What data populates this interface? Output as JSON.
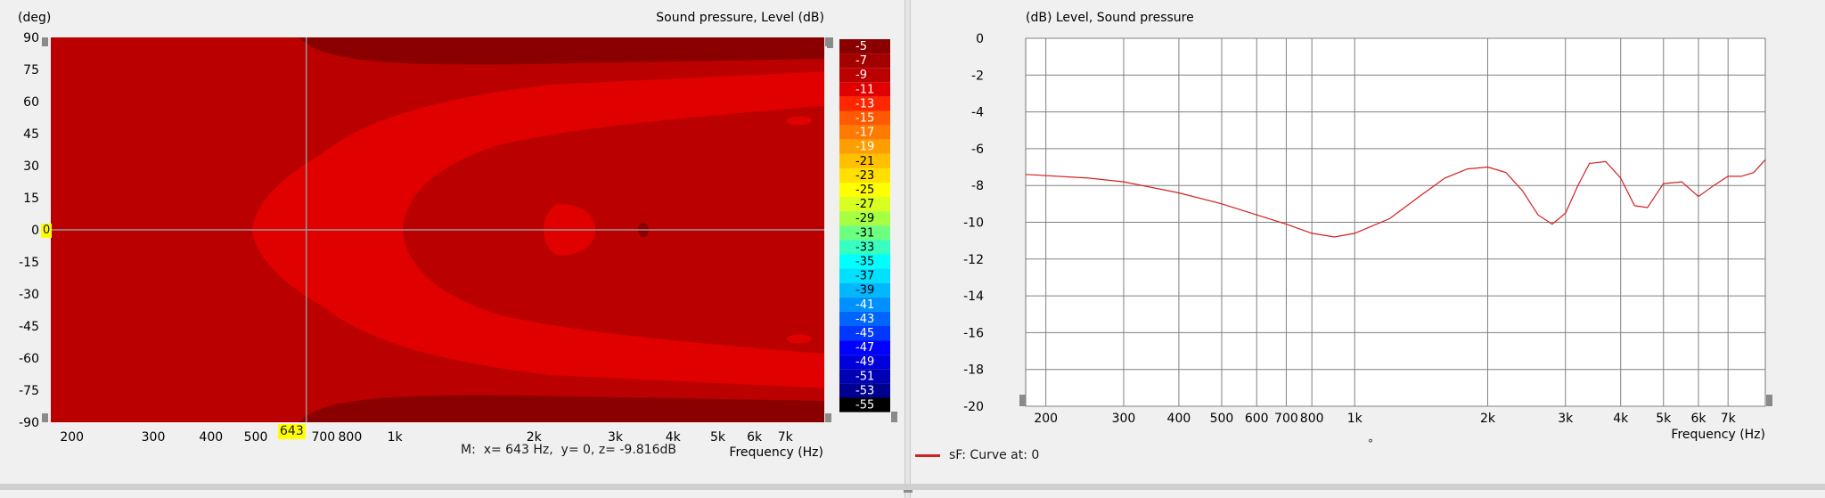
{
  "chart_data": [
    {
      "type": "heatmap",
      "title": "Sound pressure, Level  (dB)",
      "ylabel": "(deg)",
      "xlabel": "Frequency  (Hz)",
      "x_scale": "log",
      "xlim": [
        180,
        8500
      ],
      "ylim": [
        -90,
        90
      ],
      "x_ticks": [
        200,
        300,
        400,
        500,
        600,
        700,
        800,
        1000,
        2000,
        3000,
        4000,
        5000,
        6000,
        7000
      ],
      "x_tick_labels": [
        "200",
        "300",
        "400",
        "500",
        "",
        "700",
        "800",
        "1k",
        "2k",
        "3k",
        "4k",
        "5k",
        "6k",
        "7k"
      ],
      "y_ticks": [
        90,
        75,
        60,
        45,
        30,
        15,
        0,
        -15,
        -30,
        -45,
        -60,
        -75,
        -90
      ],
      "colorbar": {
        "levels": [
          "-5",
          "-7",
          "-9",
          "-11",
          "-13",
          "-15",
          "-17",
          "-19",
          "-21",
          "-23",
          "-25",
          "-27",
          "-29",
          "-31",
          "-33",
          "-35",
          "-37",
          "-39",
          "-41",
          "-43",
          "-45",
          "-47",
          "-49",
          "-51",
          "-53",
          "-55"
        ],
        "colors": [
          "#8a0000",
          "#a30000",
          "#bb0000",
          "#e00000",
          "#ff2600",
          "#ff5a00",
          "#ff7a00",
          "#ff9e00",
          "#ffc000",
          "#ffe000",
          "#ffff00",
          "#d8ff20",
          "#a6ff40",
          "#6cff80",
          "#38ffc0",
          "#00ffff",
          "#00e0ff",
          "#00b8ff",
          "#0090ff",
          "#0064ff",
          "#0038ff",
          "#0000ff",
          "#0000dd",
          "#0000b4",
          "#000090",
          "#000000"
        ]
      },
      "regions": {
        "base": "#bb0000",
        "dark": "#8a0000",
        "bright": "#e00000"
      },
      "cursor": {
        "x": 643,
        "y": 0,
        "x_label": "643",
        "y_label": "0"
      }
    },
    {
      "type": "line",
      "title": "(dB)  Level, Sound pressure",
      "xlabel": "Frequency  (Hz)",
      "x_scale": "log",
      "xlim": [
        180,
        8500
      ],
      "ylim": [
        -20,
        0
      ],
      "y_ticks": [
        0,
        -2,
        -4,
        -6,
        -8,
        -10,
        -12,
        -14,
        -16,
        -18,
        -20
      ],
      "x_ticks": [
        200,
        300,
        400,
        500,
        600,
        700,
        800,
        1000,
        2000,
        3000,
        4000,
        5000,
        6000,
        7000
      ],
      "x_tick_labels": [
        "200",
        "300",
        "400",
        "500",
        "600",
        "700",
        "800",
        "1k",
        "2k",
        "3k",
        "4k",
        "5k",
        "6k",
        "7k"
      ],
      "series": [
        {
          "name": "sF: Curve at: 0",
          "color": "#d42020",
          "x": [
            180,
            250,
            300,
            400,
            500,
            600,
            700,
            800,
            900,
            1000,
            1200,
            1400,
            1600,
            1800,
            2000,
            2200,
            2400,
            2600,
            2800,
            3000,
            3200,
            3400,
            3700,
            4000,
            4300,
            4600,
            5000,
            5500,
            6000,
            6500,
            7000,
            7500,
            8000,
            8500
          ],
          "y": [
            -7.4,
            -7.6,
            -7.8,
            -8.4,
            -9.0,
            -9.6,
            -10.1,
            -10.6,
            -10.8,
            -10.6,
            -9.8,
            -8.6,
            -7.6,
            -7.1,
            -7.0,
            -7.3,
            -8.3,
            -9.6,
            -10.1,
            -9.5,
            -8.0,
            -6.8,
            -6.7,
            -7.6,
            -9.1,
            -9.2,
            -7.9,
            -7.8,
            -8.6,
            -8.0,
            -7.5,
            -7.5,
            -7.3,
            -6.6
          ]
        }
      ]
    }
  ],
  "ui": {
    "readout": "M:  x= 643 Hz,  y= 0, z= -9.816dB",
    "legend_label": "sF: Curve at: 0",
    "degree_mark": "°"
  }
}
